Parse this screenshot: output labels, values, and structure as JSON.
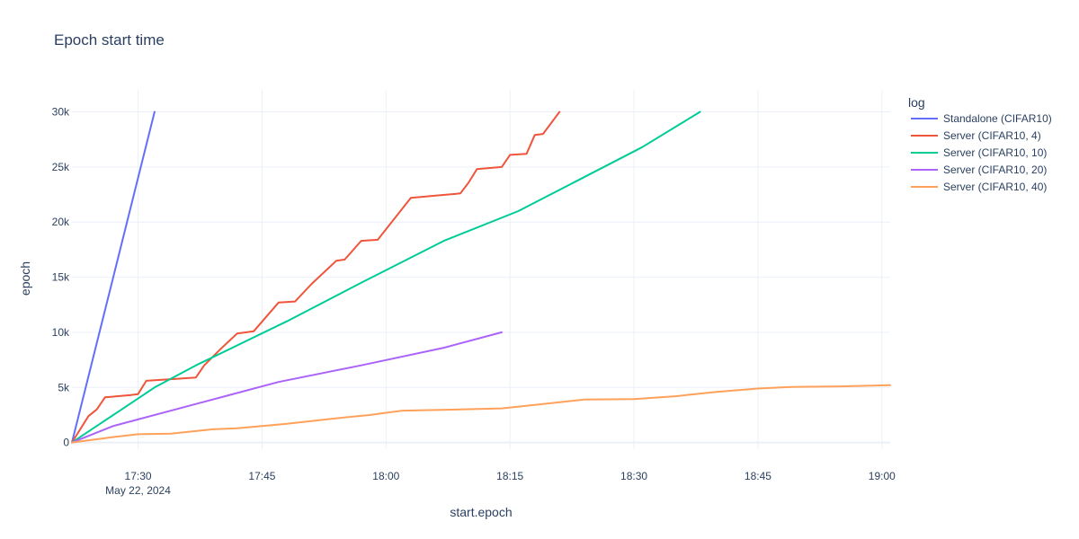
{
  "chart_data": {
    "type": "line",
    "title": "Epoch start time",
    "xlabel": "start.epoch",
    "ylabel": "epoch",
    "xlim": [
      "17:22",
      "19:01"
    ],
    "ylim": [
      -600,
      32000
    ],
    "date_label": "May 22, 2024",
    "x_ticks": [
      "17:30",
      "17:45",
      "18:00",
      "18:15",
      "18:30",
      "18:45",
      "19:00"
    ],
    "y_ticks": [
      {
        "value": 0,
        "label": "0"
      },
      {
        "value": 5000,
        "label": "5k"
      },
      {
        "value": 10000,
        "label": "10k"
      },
      {
        "value": 15000,
        "label": "15k"
      },
      {
        "value": 20000,
        "label": "20k"
      },
      {
        "value": 25000,
        "label": "25k"
      },
      {
        "value": 30000,
        "label": "30k"
      }
    ],
    "grid": true,
    "legend": {
      "title": "log",
      "position": "right"
    },
    "series": [
      {
        "name": "Standalone (CIFAR10)",
        "color": "#636efa",
        "points": [
          [
            "17:22",
            0
          ],
          [
            "17:32",
            30000
          ]
        ]
      },
      {
        "name": "Server (CIFAR10, 4)",
        "color": "#ef553b",
        "points": [
          [
            "17:22",
            0
          ],
          [
            "17:24",
            2400
          ],
          [
            "17:25",
            3000
          ],
          [
            "17:26",
            4100
          ],
          [
            "17:29",
            4300
          ],
          [
            "17:30",
            4400
          ],
          [
            "17:31",
            5600
          ],
          [
            "17:35",
            5800
          ],
          [
            "17:37",
            5900
          ],
          [
            "17:38",
            7000
          ],
          [
            "17:40",
            8500
          ],
          [
            "17:42",
            9900
          ],
          [
            "17:44",
            10100
          ],
          [
            "17:47",
            12700
          ],
          [
            "17:49",
            12800
          ],
          [
            "17:51",
            14400
          ],
          [
            "17:54",
            16500
          ],
          [
            "17:55",
            16600
          ],
          [
            "17:57",
            18300
          ],
          [
            "17:59",
            18400
          ],
          [
            "18:03",
            22200
          ],
          [
            "18:06",
            22400
          ],
          [
            "18:09",
            22600
          ],
          [
            "18:10",
            23600
          ],
          [
            "18:11",
            24800
          ],
          [
            "18:14",
            25000
          ],
          [
            "18:15",
            26100
          ],
          [
            "18:17",
            26200
          ],
          [
            "18:18",
            27900
          ],
          [
            "18:19",
            28000
          ],
          [
            "18:21",
            30000
          ]
        ]
      },
      {
        "name": "Server (CIFAR10, 10)",
        "color": "#00cc96",
        "points": [
          [
            "17:22",
            0
          ],
          [
            "17:26",
            2000
          ],
          [
            "17:32",
            5000
          ],
          [
            "17:37",
            7000
          ],
          [
            "17:48",
            11000
          ],
          [
            "17:57",
            14500
          ],
          [
            "18:07",
            18300
          ],
          [
            "18:16",
            21000
          ],
          [
            "18:23",
            23700
          ],
          [
            "18:31",
            26800
          ],
          [
            "18:38",
            30000
          ]
        ]
      },
      {
        "name": "Server (CIFAR10, 20)",
        "color": "#ab63fa",
        "points": [
          [
            "17:22",
            0
          ],
          [
            "17:27",
            1500
          ],
          [
            "17:37",
            3500
          ],
          [
            "17:47",
            5500
          ],
          [
            "17:57",
            7000
          ],
          [
            "18:07",
            8600
          ],
          [
            "18:14",
            10000
          ]
        ]
      },
      {
        "name": "Server (CIFAR10, 40)",
        "color": "#ffa15a",
        "points": [
          [
            "17:22",
            0
          ],
          [
            "17:27",
            500
          ],
          [
            "17:30",
            750
          ],
          [
            "17:34",
            800
          ],
          [
            "17:39",
            1200
          ],
          [
            "17:42",
            1300
          ],
          [
            "17:48",
            1700
          ],
          [
            "17:54",
            2200
          ],
          [
            "17:58",
            2500
          ],
          [
            "18:00",
            2700
          ],
          [
            "18:02",
            2900
          ],
          [
            "18:09",
            3000
          ],
          [
            "18:14",
            3100
          ],
          [
            "18:19",
            3500
          ],
          [
            "18:24",
            3900
          ],
          [
            "18:30",
            3950
          ],
          [
            "18:35",
            4200
          ],
          [
            "18:40",
            4600
          ],
          [
            "18:45",
            4900
          ],
          [
            "18:49",
            5050
          ],
          [
            "18:55",
            5100
          ],
          [
            "19:01",
            5200
          ]
        ]
      }
    ]
  }
}
